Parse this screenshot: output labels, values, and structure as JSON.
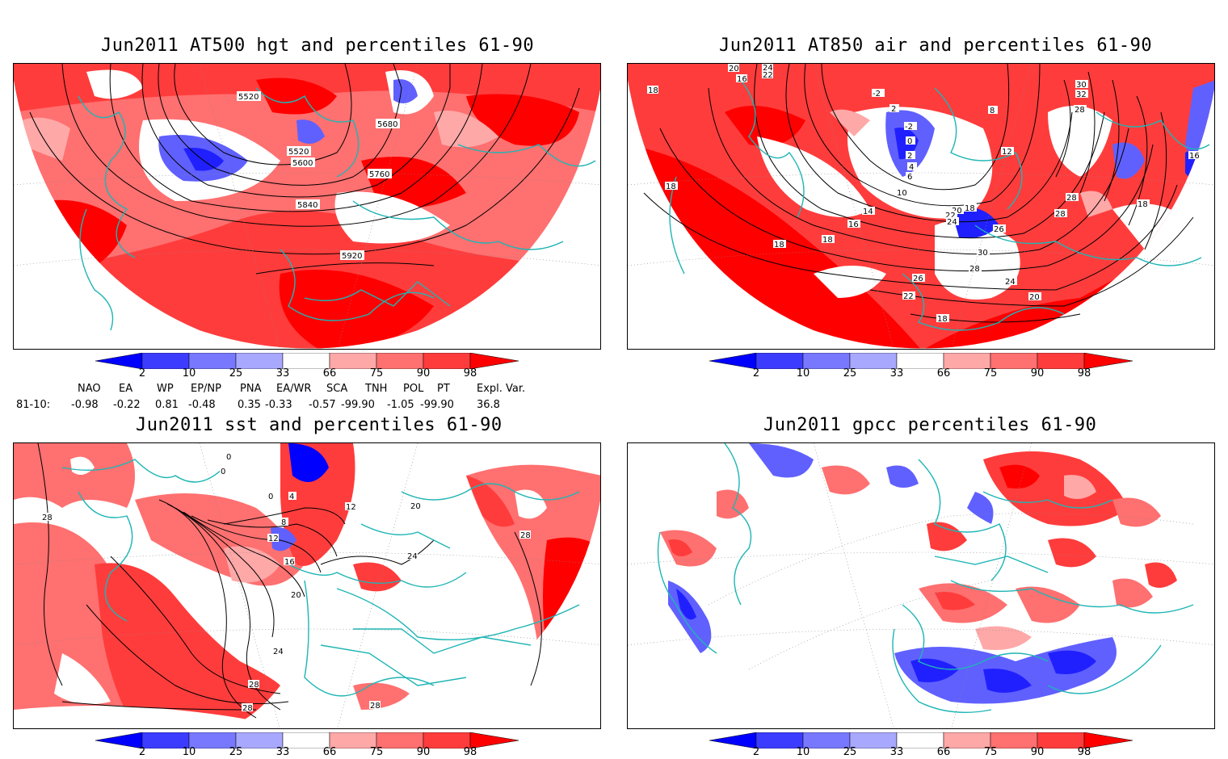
{
  "panels": [
    {
      "id": "p1",
      "title": "Jun2011 AT500 hgt and percentiles 61-90",
      "contour_labels": [
        "5520",
        "5520",
        "5600",
        "5680",
        "5760",
        "5840",
        "5920"
      ]
    },
    {
      "id": "p2",
      "title": "Jun2011 AT850 air and percentiles 61-90",
      "contour_labels": [
        "20",
        "24",
        "22",
        "16",
        "18",
        "-2",
        "2",
        "-2",
        "0",
        "2",
        "4",
        "6",
        "8",
        "10",
        "12",
        "14",
        "16",
        "18",
        "18",
        "20",
        "22",
        "24",
        "26",
        "28",
        "30",
        "32",
        "28",
        "28",
        "16",
        "18",
        "18",
        "18",
        "30",
        "28",
        "26",
        "24",
        "22",
        "20",
        "18"
      ]
    },
    {
      "id": "p3",
      "title": "Jun2011 sst and percentiles 61-90",
      "contour_labels": [
        "0",
        "0",
        "0",
        "8",
        "4",
        "12",
        "16",
        "20",
        "24",
        "28",
        "28",
        "28",
        "12",
        "20",
        "24",
        "28",
        "28"
      ]
    },
    {
      "id": "p4",
      "title": "Jun2011 gpcc percentiles 61-90",
      "contour_labels": []
    }
  ],
  "colorbar": {
    "ticks": [
      "2",
      "10",
      "25",
      "33",
      "66",
      "75",
      "90",
      "98"
    ],
    "colors": {
      "below2": "#0000ff",
      "c2_10": "#3c3cff",
      "c10_25": "#7878ff",
      "c25_33": "#a8a8ff",
      "c33_66": "#ffffff",
      "c66_75": "#ffa8a8",
      "c75_90": "#ff7070",
      "c90_98": "#ff3c3c",
      "above98": "#ff0000"
    }
  },
  "indices": {
    "headers": [
      "NAO",
      "EA",
      "WP",
      "EP/NP",
      "PNA",
      "EA/WR",
      "SCA",
      "TNH",
      "POL",
      "PT",
      "Expl. Var."
    ],
    "row_label": "81-10:",
    "values": [
      "-0.98",
      "-0.22",
      "0.81",
      "-0.48",
      "0.35",
      "-0.33",
      "-0.57",
      "-99.90",
      "-1.05",
      "-99.90",
      "36.8"
    ]
  },
  "map_colors": {
    "coast": "#1fb5b5",
    "red_strong": "#ff0000",
    "red_mid": "#ff3c3c",
    "red_light": "#ff7070",
    "red_pale": "#ffa8a8",
    "blue_mid": "#6060ff",
    "blue_strong": "#2020ff",
    "contour": "#000000"
  }
}
